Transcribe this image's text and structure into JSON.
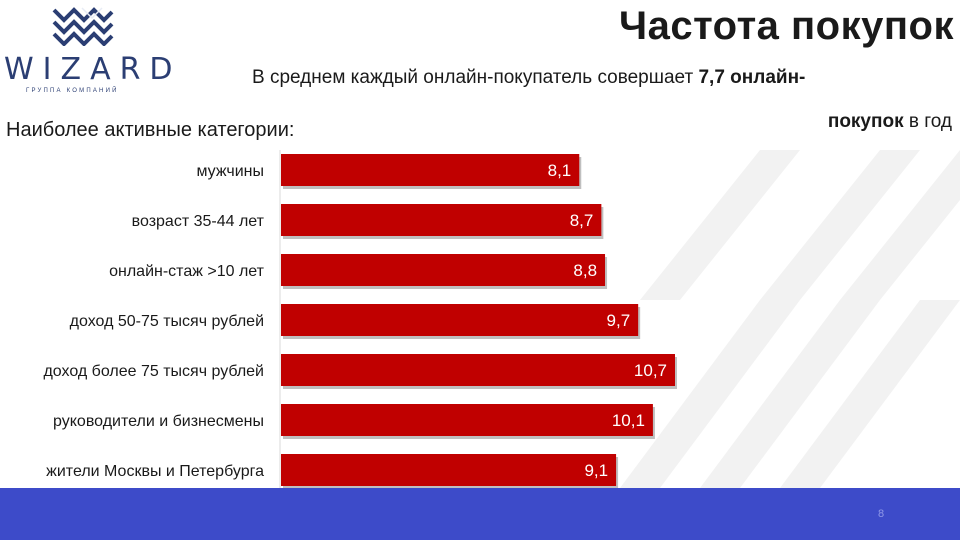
{
  "brand": {
    "name": "WIZARD",
    "tagline": "ГРУППА КОМПАНИЙ",
    "color": "#2b3e73"
  },
  "title": "Частота покупок",
  "subtitle": {
    "prefix": "В среднем каждый онлайн-покупатель совершает ",
    "value": "7,7 онлайн-",
    "line2_bold": "покупок",
    "line2_rest": " в год"
  },
  "section_label": "Наиболее активные категории:",
  "footer": {
    "page_number": "8",
    "color": "#3d4bc9"
  },
  "chart_data": {
    "type": "bar",
    "orientation": "horizontal",
    "categories": [
      "мужчины",
      "возраст 35-44 лет",
      "онлайн-стаж >10 лет",
      "доход 50-75 тысяч рублей",
      "доход более 75 тысяч рублей",
      "руководители и бизнесмены",
      "жители Москвы и Петербурга"
    ],
    "values": [
      8.1,
      8.7,
      8.8,
      9.7,
      10.7,
      10.1,
      9.1
    ],
    "value_labels": [
      "8,1",
      "8,7",
      "8,8",
      "9,7",
      "10,7",
      "10,1",
      "9,1"
    ],
    "bar_color": "#c00000",
    "xlim": [
      0,
      10.7
    ],
    "grid": false,
    "legend": "none"
  }
}
